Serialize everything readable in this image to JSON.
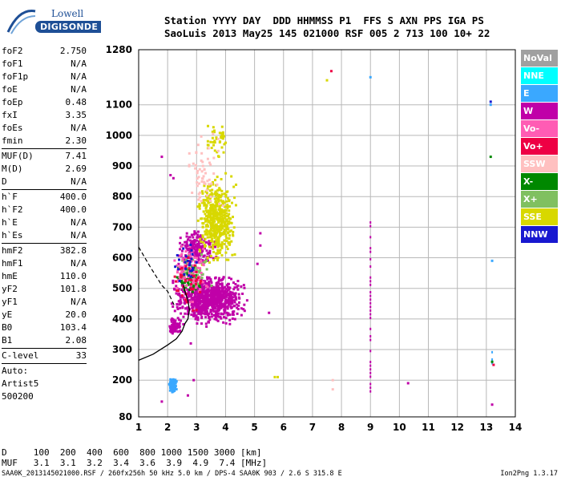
{
  "logo": {
    "line1": "Lowell",
    "line2": "DIGISONDE"
  },
  "header": {
    "line1": "Station YYYY DAY  DDD HHMMSS P1  FFS S AXN PPS IGA PS",
    "line2": "SaoLuis 2013 May25 145 021000 RSF 005 2 713 100 10+ 22"
  },
  "params": [
    {
      "name": "foF2",
      "value": "2.750"
    },
    {
      "name": "foF1",
      "value": "N/A"
    },
    {
      "name": "foF1p",
      "value": "N/A"
    },
    {
      "name": "foE",
      "value": "N/A"
    },
    {
      "name": "foEp",
      "value": "0.48"
    },
    {
      "name": "fxI",
      "value": "3.35"
    },
    {
      "name": "foEs",
      "value": "N/A"
    },
    {
      "name": "fmin",
      "value": "2.30"
    },
    {
      "name": "MUF(D)",
      "value": "7.41"
    },
    {
      "name": "M(D)",
      "value": "2.69"
    },
    {
      "name": "D",
      "value": "N/A"
    },
    {
      "name": "h`F",
      "value": "400.0"
    },
    {
      "name": "h`F2",
      "value": "400.0"
    },
    {
      "name": "h`E",
      "value": "N/A"
    },
    {
      "name": "h`Es",
      "value": "N/A"
    },
    {
      "name": "hmF2",
      "value": "382.8"
    },
    {
      "name": "hmF1",
      "value": "N/A"
    },
    {
      "name": "hmE",
      "value": "110.0"
    },
    {
      "name": "yF2",
      "value": "101.8"
    },
    {
      "name": "yF1",
      "value": "N/A"
    },
    {
      "name": "yE",
      "value": "20.0"
    },
    {
      "name": "B0",
      "value": "103.4"
    },
    {
      "name": "B1",
      "value": "2.08"
    },
    {
      "name": "C-level",
      "value": "33"
    }
  ],
  "auto": {
    "line1": "Auto:",
    "line2": "Artist5",
    "line3": "500200"
  },
  "legend": [
    {
      "label": "NoVal",
      "color": "#a0a0a0",
      "text_color": "#ffffff"
    },
    {
      "label": "NNE",
      "color": "#00ffff",
      "text_color": "#ffffff"
    },
    {
      "label": "E",
      "color": "#3aa8ff",
      "text_color": "#ffffff"
    },
    {
      "label": "W",
      "color": "#c000a8",
      "text_color": "#ffffff"
    },
    {
      "label": "Vo-",
      "color": "#ff5cb4",
      "text_color": "#ffffff"
    },
    {
      "label": "Vo+",
      "color": "#ee0044",
      "text_color": "#ffffff"
    },
    {
      "label": "SSW",
      "color": "#ffc0c0",
      "text_color": "#ffffff"
    },
    {
      "label": "X-",
      "color": "#008800",
      "text_color": "#ffffff"
    },
    {
      "label": "X+",
      "color": "#80c060",
      "text_color": "#ffffff"
    },
    {
      "label": "SSE",
      "color": "#d8d800",
      "text_color": "#ffffff"
    },
    {
      "label": "NNW",
      "color": "#1818d0",
      "text_color": "#ffffff"
    }
  ],
  "bottom": {
    "d_row": "D     100  200  400  600  800 1000 1500 3000 [km]",
    "muf_row": "MUF   3.1  3.1  3.2  3.4  3.6  3.9  4.9  7.4 [MHz]"
  },
  "footer": {
    "left": "SAA0K_2013145021000.RSF / 260fx256h 50 kHz 5.0 km / DPS-4 SAA0K 903 / 2.6 S 315.8 E",
    "right": "Ion2Png 1.3.17"
  },
  "chart_data": {
    "type": "scatter",
    "title": "",
    "xlabel": "",
    "ylabel": "",
    "xlim": [
      1,
      14
    ],
    "ylim": [
      80,
      1280
    ],
    "x_ticks": [
      1,
      2,
      3,
      4,
      5,
      6,
      7,
      8,
      9,
      10,
      11,
      12,
      13,
      14
    ],
    "y_ticks": [
      80,
      200,
      300,
      400,
      500,
      600,
      700,
      800,
      900,
      1000,
      1100,
      1280
    ],
    "grid": true,
    "series": [
      {
        "name": "W",
        "color": "#c000a8",
        "clusters": [
          {
            "x": [
              1.95,
              4.9
            ],
            "y": [
              370,
              560
            ],
            "density": 900
          },
          {
            "x": [
              2.2,
              3.8
            ],
            "y": [
              560,
              700
            ],
            "density": 220
          },
          {
            "x": [
              1.9,
              2.6
            ],
            "y": [
              340,
              420
            ],
            "density": 60
          }
        ]
      },
      {
        "name": "SSE",
        "color": "#d8d800",
        "clusters": [
          {
            "x": [
              2.9,
              4.5
            ],
            "y": [
              540,
              900
            ],
            "density": 500
          },
          {
            "x": [
              3.2,
              4.2
            ],
            "y": [
              900,
              1080
            ],
            "density": 40
          }
        ]
      },
      {
        "name": "X+",
        "color": "#80c060",
        "clusters": [
          {
            "x": [
              2.2,
              3.6
            ],
            "y": [
              480,
              620
            ],
            "density": 80
          }
        ]
      },
      {
        "name": "X-",
        "color": "#008800",
        "clusters": [
          {
            "x": [
              2.1,
              3.3
            ],
            "y": [
              460,
              600
            ],
            "density": 50
          }
        ]
      },
      {
        "name": "Vo-",
        "color": "#ff5cb4",
        "clusters": [
          {
            "x": [
              2.0,
              3.6
            ],
            "y": [
              420,
              700
            ],
            "density": 90
          }
        ]
      },
      {
        "name": "Vo+",
        "color": "#ee0044",
        "clusters": [
          {
            "x": [
              2.0,
              3.4
            ],
            "y": [
              400,
              650
            ],
            "density": 40
          }
        ]
      },
      {
        "name": "SSW",
        "color": "#ffc0c0",
        "clusters": [
          {
            "x": [
              2.4,
              4.0
            ],
            "y": [
              700,
              1080
            ],
            "density": 60
          }
        ]
      },
      {
        "name": "NNW",
        "color": "#1818d0",
        "clusters": [
          {
            "x": [
              2.2,
              3.2
            ],
            "y": [
              500,
              650
            ],
            "density": 25
          }
        ]
      },
      {
        "name": "E",
        "color": "#3aa8ff",
        "clusters": [
          {
            "x": [
              2.0,
              2.35
            ],
            "y": [
              150,
              215
            ],
            "density": 70
          }
        ]
      }
    ],
    "vertical_traces": [
      {
        "x": 9.0,
        "y": [
          150,
          720
        ],
        "color": "#c000a8"
      },
      {
        "x": 13.2,
        "y": [
          230,
          300
        ],
        "color": "#3aa8ff"
      }
    ],
    "scattered_points": [
      {
        "x": 7.65,
        "y": 1210,
        "color": "#ee0044"
      },
      {
        "x": 7.5,
        "y": 1180,
        "color": "#d8d800"
      },
      {
        "x": 9.0,
        "y": 1190,
        "color": "#3aa8ff"
      },
      {
        "x": 13.15,
        "y": 1110,
        "color": "#1818d0"
      },
      {
        "x": 13.15,
        "y": 1100,
        "color": "#3aa8ff"
      },
      {
        "x": 13.15,
        "y": 930,
        "color": "#008800"
      },
      {
        "x": 13.2,
        "y": 590,
        "color": "#3aa8ff"
      },
      {
        "x": 13.2,
        "y": 260,
        "color": "#008800"
      },
      {
        "x": 13.25,
        "y": 250,
        "color": "#ee0044"
      },
      {
        "x": 13.2,
        "y": 120,
        "color": "#c000a8"
      },
      {
        "x": 5.7,
        "y": 210,
        "color": "#d8d800"
      },
      {
        "x": 5.8,
        "y": 210,
        "color": "#d8d800"
      },
      {
        "x": 5.5,
        "y": 420,
        "color": "#c000a8"
      },
      {
        "x": 5.2,
        "y": 680,
        "color": "#c000a8"
      },
      {
        "x": 5.2,
        "y": 640,
        "color": "#c000a8"
      },
      {
        "x": 5.1,
        "y": 580,
        "color": "#c000a8"
      },
      {
        "x": 7.7,
        "y": 200,
        "color": "#ffc0c0"
      },
      {
        "x": 7.7,
        "y": 170,
        "color": "#ffc0c0"
      },
      {
        "x": 10.3,
        "y": 190,
        "color": "#c000a8"
      },
      {
        "x": 1.8,
        "y": 930,
        "color": "#c000a8"
      },
      {
        "x": 2.1,
        "y": 870,
        "color": "#c000a8"
      },
      {
        "x": 2.2,
        "y": 860,
        "color": "#c000a8"
      },
      {
        "x": 2.9,
        "y": 200,
        "color": "#c000a8"
      },
      {
        "x": 2.7,
        "y": 150,
        "color": "#c000a8"
      },
      {
        "x": 1.8,
        "y": 130,
        "color": "#c000a8"
      },
      {
        "x": 2.8,
        "y": 320,
        "color": "#c000a8"
      }
    ],
    "profile_curve": {
      "style": "solid",
      "color": "#000000",
      "points": [
        [
          1,
          265
        ],
        [
          1.5,
          285
        ],
        [
          2.0,
          315
        ],
        [
          2.3,
          335
        ],
        [
          2.5,
          360
        ],
        [
          2.6,
          385
        ],
        [
          2.7,
          400
        ],
        [
          2.75,
          430
        ],
        [
          2.7,
          460
        ],
        [
          2.6,
          490
        ],
        [
          2.55,
          510
        ]
      ]
    },
    "virtual_height_curve": {
      "style": "dashed",
      "color": "#000000",
      "points": [
        [
          1,
          635
        ],
        [
          1.4,
          570
        ],
        [
          1.8,
          510
        ],
        [
          2.0,
          490
        ],
        [
          2.1,
          470
        ],
        [
          2.2,
          450
        ],
        [
          2.25,
          440
        ]
      ]
    }
  }
}
